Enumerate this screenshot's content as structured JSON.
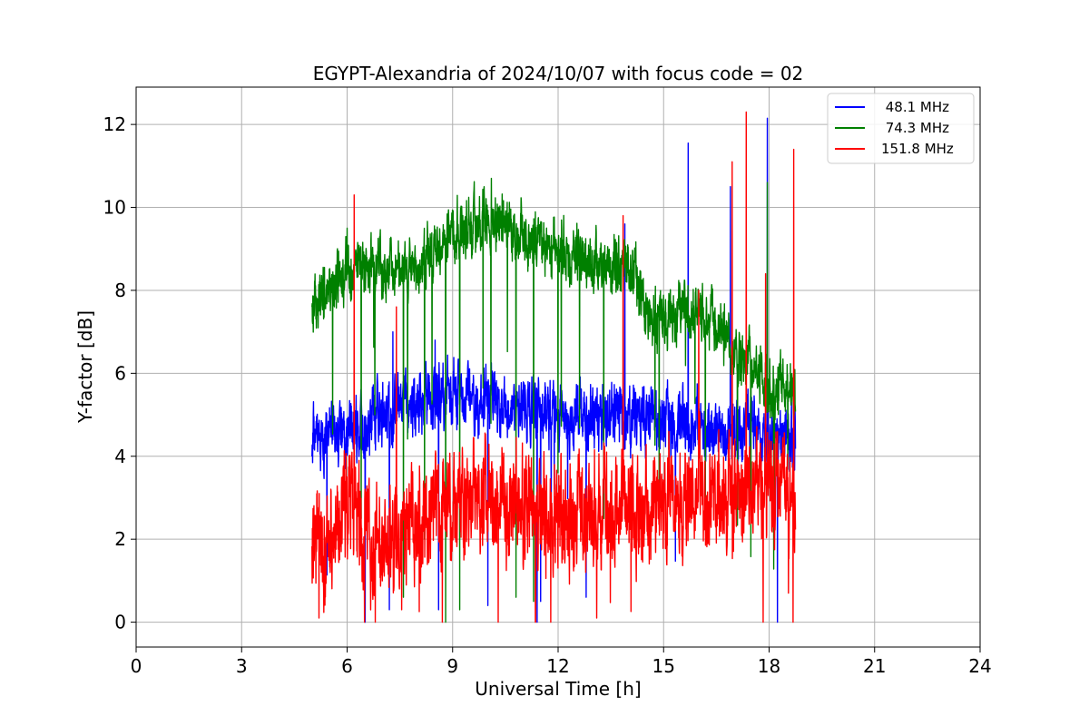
{
  "chart_data": {
    "type": "line",
    "title": "EGYPT-Alexandria of 2024/10/07 with focus code = 02",
    "xlabel": "Universal Time [h]",
    "ylabel": "Y-factor [dB]",
    "xlim": [
      0,
      24
    ],
    "ylim": [
      -0.6,
      12.9
    ],
    "xticks": [
      0,
      3,
      6,
      9,
      12,
      15,
      18,
      21,
      24
    ],
    "yticks": [
      0,
      2,
      4,
      6,
      8,
      10,
      12
    ],
    "grid": true,
    "legend_position": "top-right",
    "time_range": [
      5.0,
      18.75
    ],
    "series": [
      {
        "name": " 48.1 MHz",
        "color": "#0000ff",
        "noise": 0.5,
        "baseline": [
          [
            5.0,
            4.3
          ],
          [
            6.0,
            4.7
          ],
          [
            7.0,
            5.0
          ],
          [
            8.0,
            5.3
          ],
          [
            9.0,
            5.5
          ],
          [
            10.0,
            5.3
          ],
          [
            11.0,
            5.1
          ],
          [
            12.0,
            5.0
          ],
          [
            13.0,
            5.0
          ],
          [
            14.0,
            4.9
          ],
          [
            15.0,
            4.8
          ],
          [
            16.0,
            4.7
          ],
          [
            17.0,
            4.6
          ],
          [
            18.0,
            4.6
          ],
          [
            18.75,
            4.6
          ]
        ],
        "spikes": [
          [
            15.7,
            11.55
          ],
          [
            17.95,
            12.15
          ],
          [
            16.9,
            10.5
          ],
          [
            13.9,
            9.6
          ],
          [
            7.3,
            7.0
          ],
          [
            8.5,
            6.8
          ],
          [
            11.4,
            0.0
          ],
          [
            8.6,
            0.3
          ],
          [
            11.5,
            0.5
          ],
          [
            10.0,
            0.4
          ],
          [
            12.8,
            0.6
          ],
          [
            7.2,
            0.3
          ]
        ]
      },
      {
        "name": " 74.3 MHz",
        "color": "#008000",
        "noise": 0.45,
        "baseline": [
          [
            5.0,
            7.5
          ],
          [
            5.5,
            8.0
          ],
          [
            6.0,
            8.5
          ],
          [
            7.0,
            8.6
          ],
          [
            8.0,
            8.6
          ],
          [
            9.0,
            9.3
          ],
          [
            10.0,
            9.7
          ],
          [
            11.0,
            9.3
          ],
          [
            12.0,
            9.0
          ],
          [
            13.0,
            8.6
          ],
          [
            14.0,
            8.7
          ],
          [
            14.5,
            7.6
          ],
          [
            15.0,
            7.2
          ],
          [
            15.5,
            7.6
          ],
          [
            16.0,
            7.5
          ],
          [
            16.5,
            7.0
          ],
          [
            17.0,
            6.6
          ],
          [
            17.5,
            6.2
          ],
          [
            18.0,
            5.8
          ],
          [
            18.75,
            5.7
          ]
        ],
        "spikes": [
          [
            10.1,
            10.7
          ],
          [
            6.0,
            9.5
          ],
          [
            8.8,
            0.0
          ],
          [
            9.2,
            0.3
          ],
          [
            7.6,
            0.6
          ],
          [
            11.3,
            0.5
          ],
          [
            10.8,
            0.6
          ],
          [
            17.95,
            10.6
          ],
          [
            13.3,
            2.5
          ],
          [
            12.0,
            3.6
          ],
          [
            6.4,
            2.5
          ],
          [
            8.2,
            2.0
          ]
        ]
      },
      {
        "name": "151.8 MHz",
        "color": "#ff0000",
        "noise": 0.85,
        "baseline": [
          [
            5.0,
            1.6
          ],
          [
            5.5,
            2.0
          ],
          [
            6.0,
            2.8
          ],
          [
            6.5,
            2.2
          ],
          [
            7.0,
            1.8
          ],
          [
            8.0,
            2.3
          ],
          [
            9.0,
            2.7
          ],
          [
            10.0,
            3.0
          ],
          [
            11.0,
            2.8
          ],
          [
            12.0,
            2.5
          ],
          [
            13.0,
            2.6
          ],
          [
            14.0,
            2.8
          ],
          [
            15.0,
            2.8
          ],
          [
            16.0,
            3.0
          ],
          [
            17.0,
            3.0
          ],
          [
            18.0,
            3.4
          ],
          [
            18.75,
            2.8
          ]
        ],
        "spikes": [
          [
            17.35,
            12.3
          ],
          [
            18.7,
            11.4
          ],
          [
            16.95,
            11.1
          ],
          [
            6.2,
            10.3
          ],
          [
            13.85,
            9.8
          ],
          [
            16.0,
            8.0
          ],
          [
            6.8,
            0.0
          ],
          [
            5.2,
            0.1
          ],
          [
            13.1,
            0.1
          ],
          [
            18.55,
            0.7
          ],
          [
            17.9,
            8.4
          ],
          [
            7.4,
            7.6
          ]
        ]
      }
    ]
  }
}
